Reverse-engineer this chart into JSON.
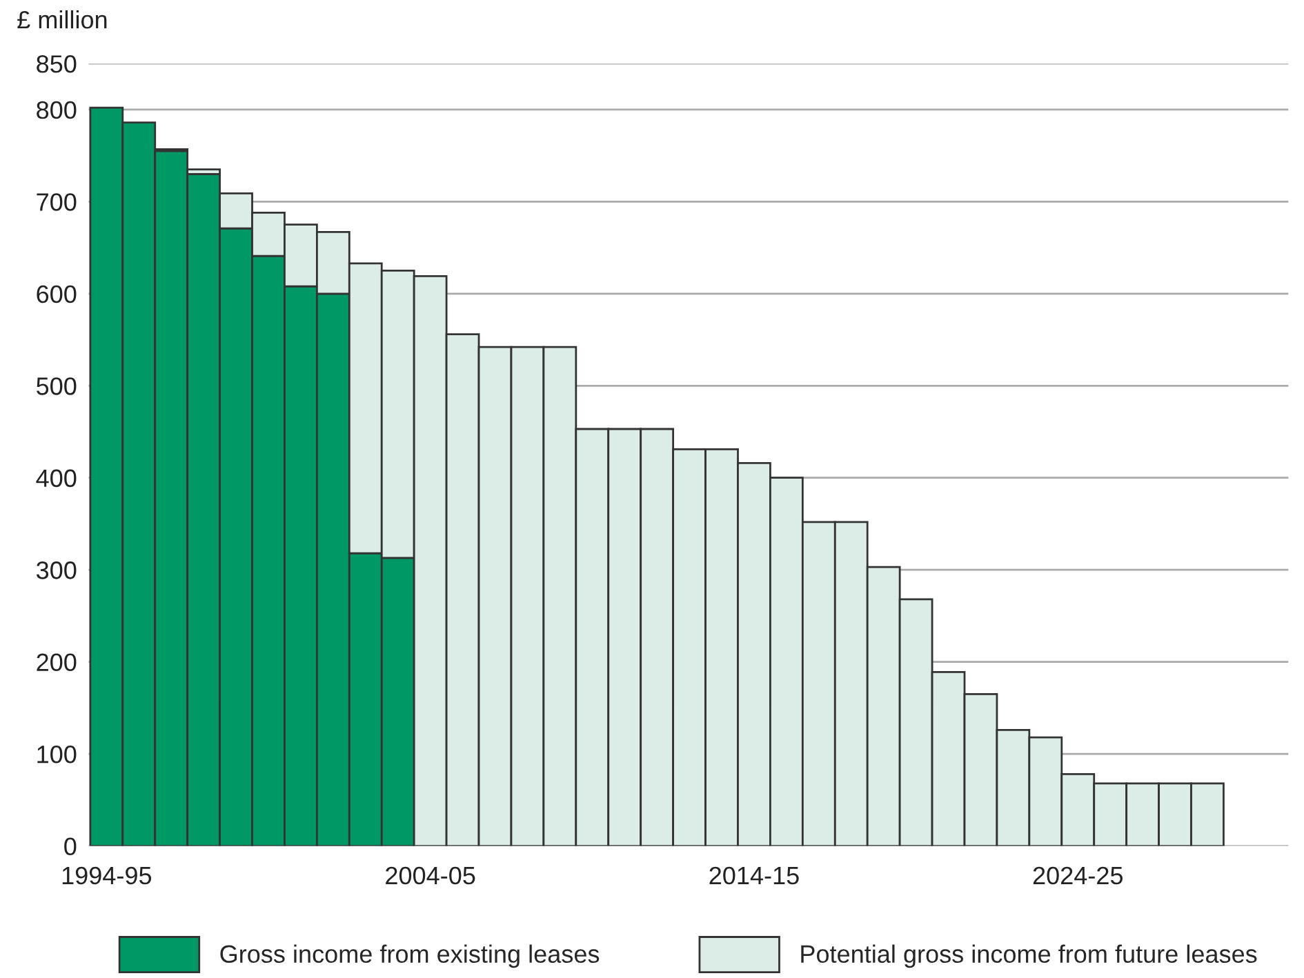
{
  "chart_data": {
    "type": "bar",
    "stacked": true,
    "ylabel": "£ million",
    "categories": [
      "1994-95",
      null,
      null,
      null,
      null,
      null,
      null,
      null,
      null,
      null,
      "2004-05",
      null,
      null,
      null,
      null,
      null,
      null,
      null,
      null,
      null,
      "2014-15",
      null,
      null,
      null,
      null,
      null,
      null,
      null,
      null,
      null,
      "2024-25",
      null,
      null,
      null,
      null
    ],
    "series": [
      {
        "name": "Gross income from existing leases",
        "color": "#009966",
        "values": [
          802,
          786,
          755,
          730,
          671,
          641,
          608,
          600,
          318,
          313,
          null,
          null,
          null,
          null,
          null,
          null,
          null,
          null,
          null,
          null,
          null,
          null,
          null,
          null,
          null,
          null,
          null,
          null,
          null,
          null,
          null,
          null,
          null,
          null,
          null
        ]
      },
      {
        "name": "Potential gross income from future leases",
        "color": "#dcece6",
        "values": [
          null,
          null,
          2,
          5,
          38,
          47,
          67,
          67,
          315,
          312,
          619,
          556,
          542,
          542,
          542,
          453,
          453,
          453,
          431,
          431,
          416,
          400,
          352,
          352,
          303,
          268,
          189,
          165,
          126,
          118,
          78,
          68,
          68,
          68,
          68
        ]
      }
    ],
    "ylim": [
      0,
      850
    ],
    "yticks": [
      0,
      100,
      200,
      300,
      400,
      500,
      600,
      700,
      800,
      850
    ],
    "grid": "y",
    "legend": "bottom"
  }
}
